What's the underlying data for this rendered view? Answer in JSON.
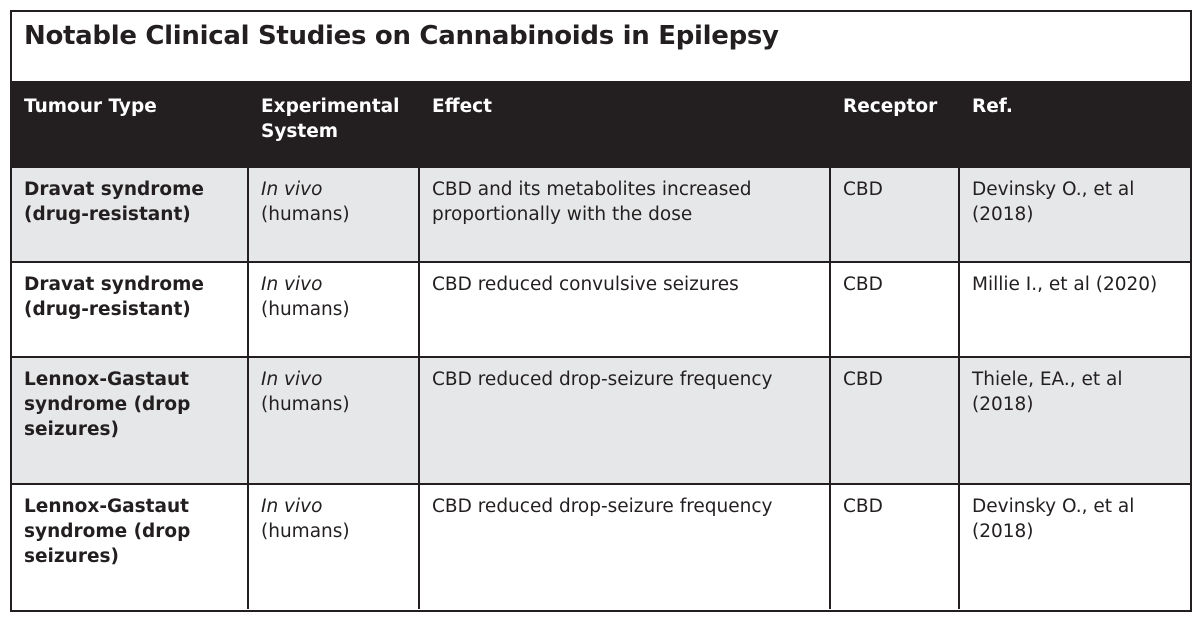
{
  "title": "Notable Clinical Studies on Cannabinoids in Epilepsy",
  "columns": [
    "Tumour Type",
    "Experimental System",
    "Effect",
    "Receptor",
    "Ref."
  ],
  "rows": [
    {
      "type": "Dravat syndrome (drug-resistant)",
      "system_italic": "In vivo",
      "system": "(humans)",
      "effect": "CBD and its metabolites increased proportionally with the dose",
      "receptor": "CBD",
      "ref": "Devinsky O., et al (2018)"
    },
    {
      "type": "Dravat syndrome (drug-resistant)",
      "system_italic": "In vivo",
      "system": "(humans)",
      "effect": "CBD reduced convulsive seizures",
      "receptor": "CBD",
      "ref": "Millie I., et al (2020)"
    },
    {
      "type": "Lennox-Gastaut syndrome (drop seizures)",
      "system_italic": "In vivo",
      "system": "(humans)",
      "effect": "CBD reduced drop-seizure frequency",
      "receptor": "CBD",
      "ref": "Thiele, EA., et al (2018)"
    },
    {
      "type": "Lennox-Gastaut syndrome (drop seizures)",
      "system_italic": "In vivo",
      "system": "(humans)",
      "effect": "CBD reduced drop-seizure frequency",
      "receptor": "CBD",
      "ref": "Devinsky O., et al (2018)"
    }
  ],
  "colors": {
    "header_bg": "#231f20",
    "alt_row_bg": "#e6e7e8"
  }
}
